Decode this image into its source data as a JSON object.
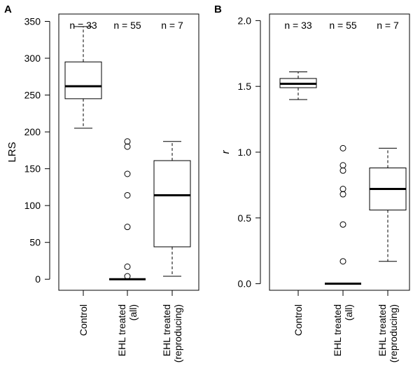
{
  "chart_data": [
    {
      "type": "boxplot",
      "panel_label": "A",
      "xlabel": "",
      "ylabel": "LRS",
      "ylabel_italic": false,
      "ylim": [
        -15,
        360
      ],
      "yticks": [
        "0",
        "50",
        "100",
        "150",
        "200",
        "250",
        "300",
        "350"
      ],
      "ytick_values": [
        0,
        50,
        100,
        150,
        200,
        250,
        300,
        350
      ],
      "categories": [
        {
          "lines": [
            "Control"
          ]
        },
        {
          "lines": [
            "EHL treated",
            "(all)"
          ]
        },
        {
          "lines": [
            "EHL treated",
            "(reproducing)"
          ]
        }
      ],
      "counts": [
        "n = 33",
        "n = 55",
        "n = 7"
      ],
      "boxes": [
        {
          "whisker_low": 205,
          "q1": 245,
          "median": 262,
          "q3": 295,
          "whisker_high": 343,
          "outliers": []
        },
        {
          "whisker_low": 0,
          "q1": 0,
          "median": 0,
          "q3": 0,
          "whisker_high": 0,
          "outliers": [
            4,
            17,
            71,
            114,
            143,
            180,
            187
          ]
        },
        {
          "whisker_low": 4,
          "q1": 44,
          "median": 114,
          "q3": 161,
          "whisker_high": 187,
          "outliers": []
        }
      ],
      "grid": false,
      "legend": "none"
    },
    {
      "type": "boxplot",
      "panel_label": "B",
      "xlabel": "",
      "ylabel": "r",
      "ylabel_italic": true,
      "ylim": [
        -0.05,
        2.05
      ],
      "yticks": [
        "0.0",
        "0.5",
        "1.0",
        "1.5",
        "2.0"
      ],
      "ytick_values": [
        0,
        0.5,
        1.0,
        1.5,
        2.0
      ],
      "categories": [
        {
          "lines": [
            "Control"
          ]
        },
        {
          "lines": [
            "EHL treated",
            "(all)"
          ]
        },
        {
          "lines": [
            "EHL treated",
            "(reproducing)"
          ]
        }
      ],
      "counts": [
        "n = 33",
        "n = 55",
        "n = 7"
      ],
      "boxes": [
        {
          "whisker_low": 1.4,
          "q1": 1.49,
          "median": 1.52,
          "q3": 1.56,
          "whisker_high": 1.61,
          "outliers": []
        },
        {
          "whisker_low": 0,
          "q1": 0,
          "median": 0,
          "q3": 0,
          "whisker_high": 0,
          "outliers": [
            0.17,
            0.45,
            0.68,
            0.72,
            0.86,
            0.9,
            1.03
          ]
        },
        {
          "whisker_low": 0.17,
          "q1": 0.56,
          "median": 0.72,
          "q3": 0.88,
          "whisker_high": 1.03,
          "outliers": []
        }
      ],
      "grid": false,
      "legend": "none"
    }
  ]
}
